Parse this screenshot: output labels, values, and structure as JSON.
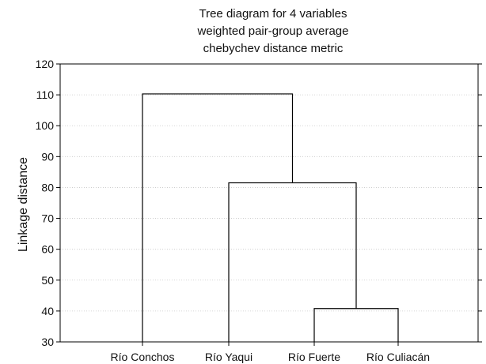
{
  "chart_data": {
    "type": "dendrogram",
    "title": [
      "Tree diagram for 4 variables",
      "weighted pair-group average",
      "chebychev distance metric"
    ],
    "xlabel": "",
    "ylabel": "Linkage distance",
    "ylim": [
      30,
      120
    ],
    "yticks": [
      30,
      40,
      50,
      60,
      70,
      80,
      90,
      100,
      110,
      120
    ],
    "grid": true,
    "leaves": [
      "Río Conchos",
      "Río Yaqui",
      "Río Fuerte",
      "Río Culiacán"
    ],
    "merges": [
      {
        "clusters": [
          "Río Fuerte",
          "Río Culiacán"
        ],
        "distance": 40.8
      },
      {
        "clusters": [
          "Río Yaqui",
          "Río Fuerte + Río Culiacán"
        ],
        "distance": 81.5
      },
      {
        "clusters": [
          "Río Conchos",
          "Río Yaqui + Río Fuerte + Río Culiacán"
        ],
        "distance": 110.3
      }
    ]
  }
}
